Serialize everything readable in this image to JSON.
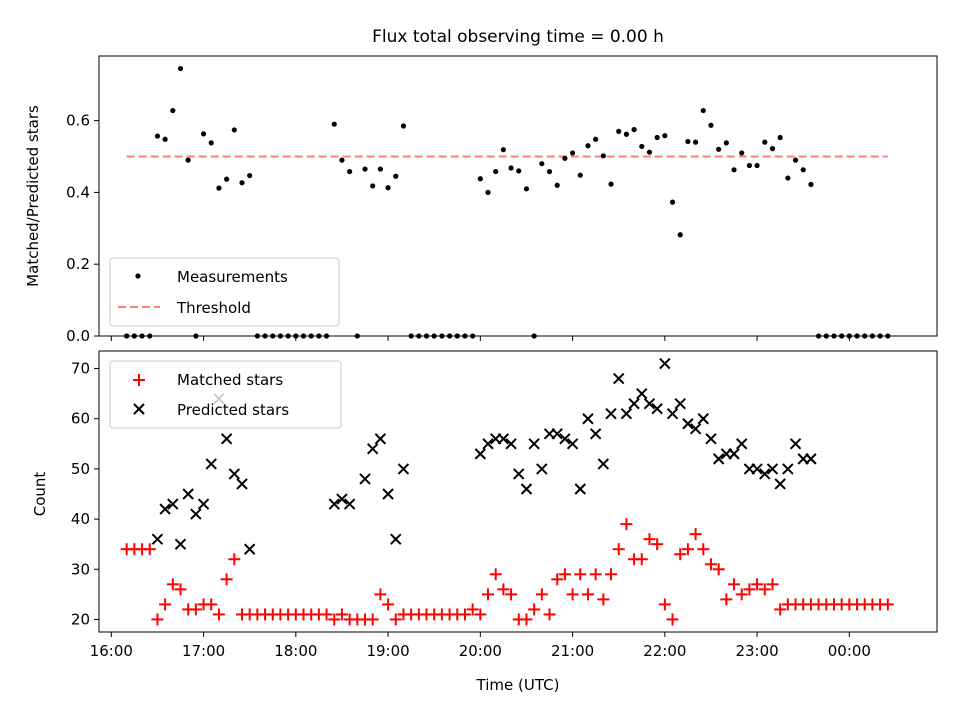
{
  "chart_data": [
    {
      "type": "scatter",
      "title": "Flux total observing time = 0.00 h",
      "xlabel": "",
      "ylabel": "Matched/Predicted stars",
      "ylim": [
        0,
        0.78
      ],
      "xlim": [
        "15:52",
        "00:57"
      ],
      "y_ticks": [
        "0.0",
        "0.2",
        "0.4",
        "0.6"
      ],
      "legend_position": "lower-left",
      "legend": [
        "Measurements",
        "Threshold"
      ],
      "threshold": {
        "name": "Threshold",
        "value": 0.5,
        "x_start": "16:10",
        "x_end": "00:25",
        "color": "#ff7f7f"
      },
      "series": [
        {
          "name": "Measurements",
          "color": "#000000",
          "x": [
            "16:10",
            "16:15",
            "16:20",
            "16:25",
            "16:30",
            "16:35",
            "16:40",
            "16:45",
            "16:50",
            "16:55",
            "17:00",
            "17:05",
            "17:10",
            "17:15",
            "17:20",
            "17:25",
            "17:30",
            "17:35",
            "17:40",
            "17:45",
            "17:50",
            "17:55",
            "18:00",
            "18:05",
            "18:10",
            "18:15",
            "18:20",
            "18:25",
            "18:30",
            "18:35",
            "18:40",
            "18:45",
            "18:50",
            "18:55",
            "19:00",
            "19:05",
            "19:10",
            "19:15",
            "19:20",
            "19:25",
            "19:30",
            "19:35",
            "19:40",
            "19:45",
            "19:50",
            "19:55",
            "20:00",
            "20:05",
            "20:10",
            "20:15",
            "20:20",
            "20:25",
            "20:30",
            "20:35",
            "20:40",
            "20:45",
            "20:50",
            "20:55",
            "21:00",
            "21:05",
            "21:10",
            "21:15",
            "21:20",
            "21:25",
            "21:30",
            "21:35",
            "21:40",
            "21:45",
            "21:50",
            "21:55",
            "22:00",
            "22:05",
            "22:10",
            "22:15",
            "22:20",
            "22:25",
            "22:30",
            "22:35",
            "22:40",
            "22:45",
            "22:50",
            "22:55",
            "23:00",
            "23:05",
            "23:10",
            "23:15",
            "23:20",
            "23:25",
            "23:30",
            "23:35",
            "23:40",
            "23:45",
            "23:50",
            "23:55",
            "00:00",
            "00:05",
            "00:10",
            "00:15",
            "00:20",
            "00:25"
          ],
          "y": [
            0,
            0,
            0,
            0,
            0.557,
            0.548,
            0.628,
            0.745,
            0.49,
            0,
            0.563,
            0.538,
            0.412,
            0.437,
            0.574,
            0.427,
            0.447,
            0,
            0,
            0,
            0,
            0,
            0,
            0,
            0,
            0,
            0,
            0.59,
            0.49,
            0.458,
            0,
            0.465,
            0.418,
            0.465,
            0.413,
            0.445,
            0.585,
            0,
            0,
            0,
            0,
            0,
            0,
            0,
            0,
            0,
            0.438,
            0.4,
            0.458,
            0.519,
            0.468,
            0.46,
            0.41,
            0,
            0.48,
            0.458,
            0.42,
            0.495,
            0.51,
            0.448,
            0.53,
            0.548,
            0.502,
            0.423,
            0.57,
            0.562,
            0.575,
            0.528,
            0.512,
            0.553,
            0.558,
            0.373,
            0.282,
            0.542,
            0.54,
            0.628,
            0.587,
            0.52,
            0.538,
            0.463,
            0.51,
            0.475,
            0.475,
            0.54,
            0.522,
            0.553,
            0.44,
            0.49,
            0.463,
            0.422,
            0,
            0,
            0,
            0,
            0,
            0,
            0,
            0,
            0,
            0
          ]
        }
      ]
    },
    {
      "type": "scatter",
      "title": "",
      "xlabel": "Time (UTC)",
      "ylabel": "Count",
      "ylim": [
        17.5,
        73.5
      ],
      "xlim": [
        "15:52",
        "00:57"
      ],
      "y_ticks": [
        "20",
        "30",
        "40",
        "50",
        "60",
        "70"
      ],
      "x_ticks": [
        "16:00",
        "17:00",
        "18:00",
        "19:00",
        "20:00",
        "21:00",
        "22:00",
        "23:00",
        "00:00"
      ],
      "legend_position": "upper-left",
      "legend": [
        "Matched stars",
        "Predicted stars"
      ],
      "series": [
        {
          "name": "Matched stars",
          "color": "#ff0000",
          "marker": "+",
          "x": [
            "16:10",
            "16:15",
            "16:20",
            "16:25",
            "16:30",
            "16:35",
            "16:40",
            "16:45",
            "16:50",
            "16:55",
            "17:00",
            "17:05",
            "17:10",
            "17:15",
            "17:20",
            "17:25",
            "17:30",
            "17:35",
            "17:40",
            "17:45",
            "17:50",
            "17:55",
            "18:00",
            "18:05",
            "18:10",
            "18:15",
            "18:20",
            "18:25",
            "18:30",
            "18:35",
            "18:40",
            "18:45",
            "18:50",
            "18:55",
            "19:00",
            "19:05",
            "19:10",
            "19:15",
            "19:20",
            "19:25",
            "19:30",
            "19:35",
            "19:40",
            "19:45",
            "19:50",
            "19:55",
            "20:00",
            "20:05",
            "20:10",
            "20:15",
            "20:20",
            "20:25",
            "20:30",
            "20:35",
            "20:40",
            "20:45",
            "20:50",
            "20:55",
            "21:00",
            "21:05",
            "21:10",
            "21:15",
            "21:20",
            "21:25",
            "21:30",
            "21:35",
            "21:40",
            "21:45",
            "21:50",
            "21:55",
            "22:00",
            "22:05",
            "22:10",
            "22:15",
            "22:20",
            "22:25",
            "22:30",
            "22:35",
            "22:40",
            "22:45",
            "22:50",
            "22:55",
            "23:00",
            "23:05",
            "23:10",
            "23:15",
            "23:20",
            "23:25",
            "23:30",
            "23:35",
            "23:40",
            "23:45",
            "23:50",
            "23:55",
            "00:00",
            "00:05",
            "00:10",
            "00:15",
            "00:20",
            "00:25"
          ],
          "y": [
            34,
            34,
            34,
            34,
            20,
            23,
            27,
            26,
            22,
            22,
            23,
            23,
            21,
            28,
            32,
            21,
            21,
            21,
            21,
            21,
            21,
            21,
            21,
            21,
            21,
            21,
            21,
            20,
            21,
            20,
            20,
            20,
            20,
            25,
            23,
            20,
            21,
            21,
            21,
            21,
            21,
            21,
            21,
            21,
            21,
            22,
            21,
            25,
            29,
            26,
            25,
            20,
            20,
            22,
            25,
            21,
            28,
            29,
            25,
            29,
            25,
            29,
            24,
            29,
            34,
            39,
            32,
            32,
            36,
            35,
            23,
            20,
            33,
            34,
            37,
            34,
            31,
            30,
            24,
            27,
            25,
            26,
            27,
            26,
            27,
            22,
            23,
            23,
            23,
            23,
            23,
            23,
            23,
            23,
            23,
            23,
            23,
            23,
            23,
            23
          ]
        },
        {
          "name": "Predicted stars",
          "color": "#000000",
          "marker": "x",
          "x": [
            "16:30",
            "16:35",
            "16:40",
            "16:45",
            "16:50",
            "16:55",
            "17:00",
            "17:05",
            "17:10",
            "17:15",
            "17:20",
            "17:25",
            "17:30",
            "18:25",
            "18:30",
            "18:35",
            "18:45",
            "18:50",
            "18:55",
            "19:00",
            "19:05",
            "19:10",
            "20:00",
            "20:05",
            "20:10",
            "20:15",
            "20:20",
            "20:25",
            "20:30",
            "20:35",
            "20:40",
            "20:45",
            "20:50",
            "20:55",
            "21:00",
            "21:05",
            "21:10",
            "21:15",
            "21:20",
            "21:25",
            "21:30",
            "21:35",
            "21:40",
            "21:45",
            "21:50",
            "21:55",
            "22:00",
            "22:05",
            "22:10",
            "22:15",
            "22:20",
            "22:25",
            "22:30",
            "22:35",
            "22:40",
            "22:45",
            "22:50",
            "22:55",
            "23:00",
            "23:05",
            "23:10",
            "23:15",
            "23:20",
            "23:25",
            "23:30",
            "23:35"
          ],
          "y": [
            36,
            42,
            43,
            35,
            45,
            41,
            43,
            51,
            64,
            56,
            49,
            47,
            34,
            43,
            44,
            43,
            48,
            54,
            56,
            45,
            36,
            50,
            53,
            55,
            56,
            56,
            55,
            49,
            46,
            55,
            50,
            57,
            57,
            56,
            55,
            46,
            60,
            57,
            51,
            61,
            68,
            61,
            63,
            65,
            63,
            62,
            71,
            61,
            63,
            59,
            58,
            60,
            56,
            52,
            53,
            53,
            55,
            50,
            50,
            49,
            50,
            47,
            50,
            55,
            52,
            52
          ]
        }
      ]
    }
  ]
}
